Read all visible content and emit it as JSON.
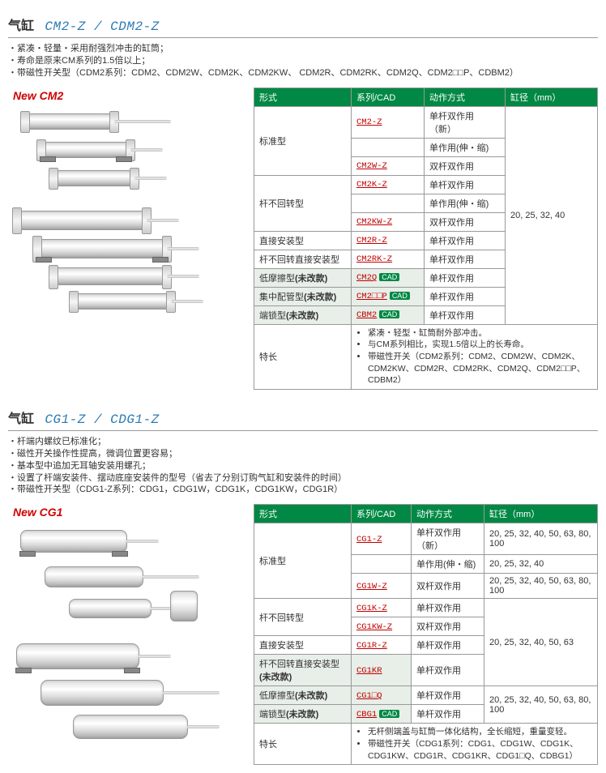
{
  "section1": {
    "prefix": "气缸",
    "model": "CM2-Z / CDM2-Z",
    "bullets": [
      "紧凑・轻量・采用耐强烈冲击的缸筒；",
      "寿命是原来CM系列的1.5倍以上；",
      "带磁性开关型（CDM2系列：CDM2、CDM2W、CDM2K、CDM2KW、 CDM2R、CDM2RK、CDM2Q、CDM2□□P、CDBM2）"
    ],
    "new_label": "New CM2",
    "headers": [
      "形式",
      "系列/CAD",
      "动作方式",
      "缸径（mm）"
    ],
    "bore": "20, 25, 32, 40",
    "rows": [
      {
        "type": "标准型",
        "rowspan": 3,
        "series": "CM2-Z",
        "action": "单杆双作用\n（新）",
        "has_cad": false,
        "alt": false
      },
      {
        "series": "",
        "action": "单作用(伸・缩)",
        "has_cad": false,
        "alt": false,
        "empty_series": true
      },
      {
        "series": "CM2W-Z",
        "action": "双杆双作用",
        "has_cad": false,
        "alt": false
      },
      {
        "type": "杆不回转型",
        "rowspan": 3,
        "series": "CM2K-Z",
        "action": "单杆双作用",
        "has_cad": false,
        "alt": false
      },
      {
        "series": "",
        "action": "单作用(伸・缩)",
        "has_cad": false,
        "alt": false,
        "empty_series": true
      },
      {
        "series": "CM2KW-Z",
        "action": "双杆双作用",
        "has_cad": false,
        "alt": false
      },
      {
        "type": "直接安装型",
        "rowspan": 1,
        "series": "CM2R-Z",
        "action": "单杆双作用",
        "has_cad": false,
        "alt": false
      },
      {
        "type": "杆不回转直接安装型",
        "rowspan": 1,
        "series": "CM2RK-Z",
        "action": "单杆双作用",
        "has_cad": false,
        "alt": false
      },
      {
        "type": "低摩擦型(未改款)",
        "rowspan": 1,
        "series": "CM2Q",
        "action": "单杆双作用",
        "has_cad": true,
        "alt": true,
        "type_bold": true
      },
      {
        "type": "集中配管型(未改款)",
        "rowspan": 1,
        "series": "CM2□□P",
        "action": "单杆双作用",
        "has_cad": true,
        "alt": true,
        "type_bold": true
      },
      {
        "type": "端锁型(未改款)",
        "rowspan": 1,
        "series": "CBM2",
        "action": "单杆双作用",
        "has_cad": true,
        "alt": true,
        "type_bold": true
      }
    ],
    "feature_label": "特长",
    "features": [
      "紧凑・轻型・缸筒耐外部冲击。",
      "与CM系列相比，实现1.5倍以上的长寿命。",
      "带磁性开关（CDM2系列：CDM2、CDM2W、CDM2K、CDM2KW、CDM2R、CDM2RK、CDM2Q、CDM2□□P、CDBM2）"
    ]
  },
  "section2": {
    "prefix": "气缸",
    "model": "CG1-Z / CDG1-Z",
    "bullets": [
      "杆端内螺纹已标准化；",
      "磁性开关操作性提高，微调位置更容易；",
      "基本型中追加无耳轴安装用螺孔；",
      "设置了杆端安装件、摆动底座安装件的型号（省去了分别订购气缸和安装件的时间）",
      "带磁性开关型（CDG1-Z系列：CDG1，CDG1W，CDG1K，CDG1KW，CDG1R）"
    ],
    "new_label": "New CG1",
    "headers": [
      "形式",
      "系列/CAD",
      "动作方式",
      "缸径（mm）"
    ],
    "rows": [
      {
        "type": "标准型",
        "rowspan": 3,
        "series": "CG1-Z",
        "action": "单杆双作用\n（新）",
        "bore": "20, 25, 32, 40, 50, 63, 80, 100",
        "alt": false
      },
      {
        "series": "",
        "action": "单作用(伸・缩)",
        "bore": "20, 25, 32, 40",
        "alt": false,
        "empty_series": true
      },
      {
        "series": "CG1W-Z",
        "action": "双杆双作用",
        "bore": "20, 25, 32, 40, 50, 63, 80, 100",
        "alt": false
      },
      {
        "type": "杆不回转型",
        "rowspan": 2,
        "series": "CG1K-Z",
        "action": "单杆双作用",
        "bore": "20, 25, 32, 40, 50, 63",
        "bore_rowspan": 4,
        "alt": false
      },
      {
        "series": "CG1KW-Z",
        "action": "双杆双作用",
        "alt": false
      },
      {
        "type": "直接安装型",
        "rowspan": 1,
        "series": "CG1R-Z",
        "action": "单杆双作用",
        "alt": false
      },
      {
        "type": "杆不回转直接安装型\n(未改款)",
        "rowspan": 1,
        "series": "CG1KR",
        "action": "单杆双作用",
        "alt": true,
        "type_bold": true
      },
      {
        "type": "低摩擦型(未改款)",
        "rowspan": 1,
        "series": "CG1□Q",
        "action": "单杆双作用",
        "bore": "20, 25, 32, 40, 50, 63, 80, 100",
        "bore_rowspan": 2,
        "alt": true,
        "type_bold": true
      },
      {
        "type": "端锁型(未改款)",
        "rowspan": 1,
        "series": "CBG1",
        "action": "单杆双作用",
        "has_cad": true,
        "alt": true,
        "type_bold": true
      }
    ],
    "feature_label": "特长",
    "features": [
      "无杆侧端盖与缸筒一体化结构，全长缩短，重量变轻。",
      "带磁性开关（CDG1系列：CDG1、CDG1W、CDG1K、CDG1KW、CDG1R、CDG1KR、CDG1□Q、CDBG1）"
    ]
  }
}
